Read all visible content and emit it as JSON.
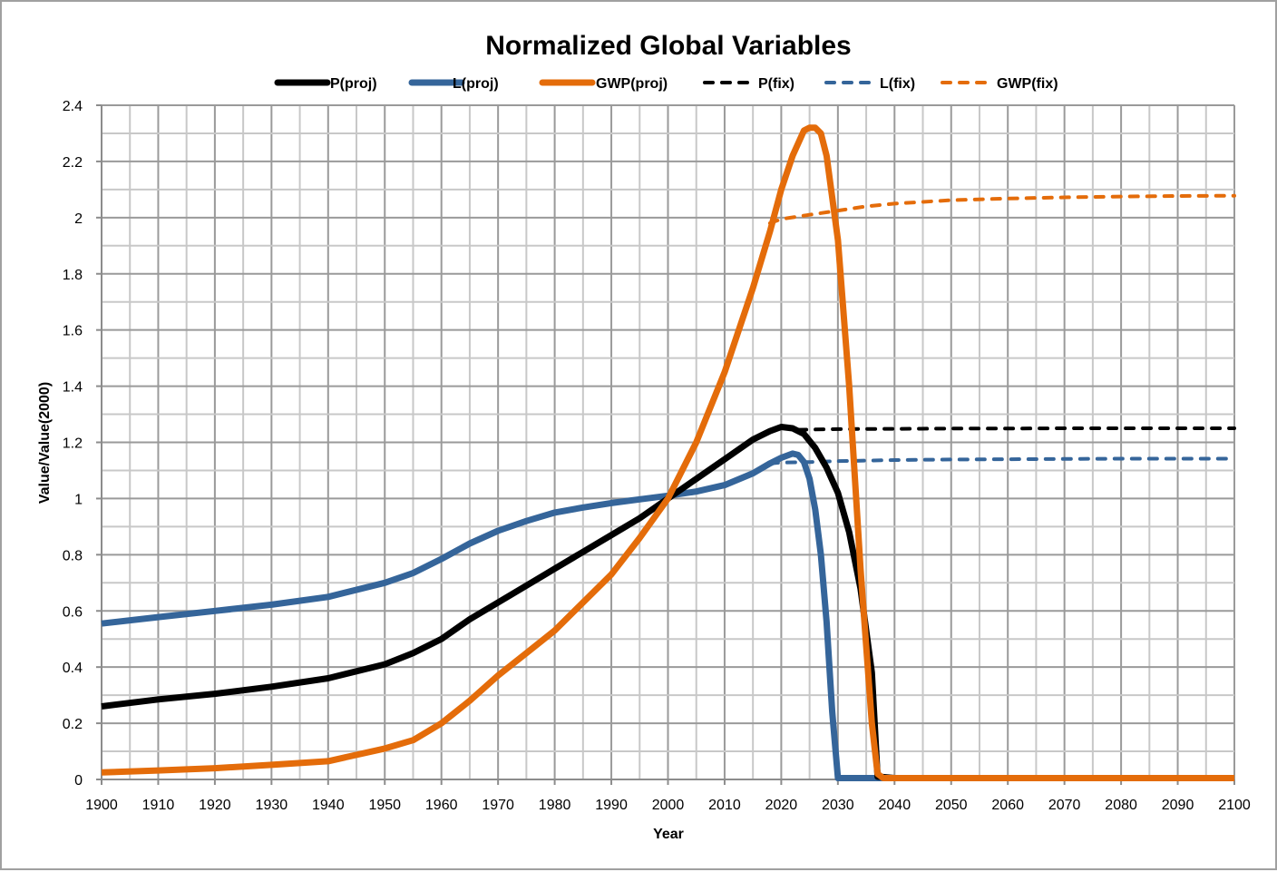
{
  "chart_data": {
    "type": "line",
    "title": "Normalized Global Variables",
    "xlabel": "Year",
    "ylabel": "Value/Value(2000)",
    "xlim": [
      1900,
      2100
    ],
    "ylim": [
      0,
      2.4
    ],
    "x_major_step": 10,
    "x_minor_step": 5,
    "y_major_step": 0.2,
    "y_minor_step": 0.1,
    "grid": true,
    "legend_position": "top",
    "x_ticks": [
      "1900",
      "1910",
      "1920",
      "1930",
      "1940",
      "1950",
      "1960",
      "1970",
      "1980",
      "1990",
      "2000",
      "2010",
      "2020",
      "2030",
      "2040",
      "2050",
      "2060",
      "2070",
      "2080",
      "2090",
      "2100"
    ],
    "y_ticks": [
      "0",
      "0.2",
      "0.4",
      "0.6",
      "0.8",
      "1",
      "1.2",
      "1.4",
      "1.6",
      "1.8",
      "2",
      "2.2",
      "2.4"
    ],
    "series": [
      {
        "name": "P(proj)",
        "color": "#000000",
        "style": "solid",
        "x": [
          1900,
          1910,
          1920,
          1930,
          1940,
          1950,
          1955,
          1960,
          1965,
          1970,
          1975,
          1980,
          1985,
          1990,
          1995,
          2000,
          2005,
          2010,
          2015,
          2018,
          2020,
          2022,
          2024,
          2026,
          2028,
          2030,
          2032,
          2034,
          2036,
          2037,
          2040,
          2100
        ],
        "y": [
          0.26,
          0.285,
          0.305,
          0.33,
          0.36,
          0.41,
          0.45,
          0.5,
          0.57,
          0.63,
          0.69,
          0.75,
          0.81,
          0.87,
          0.93,
          1.0,
          1.07,
          1.14,
          1.21,
          1.24,
          1.255,
          1.25,
          1.23,
          1.18,
          1.11,
          1.02,
          0.88,
          0.68,
          0.38,
          0.01,
          0.005,
          0.005
        ]
      },
      {
        "name": "L(proj)",
        "color": "#35659a",
        "style": "solid",
        "x": [
          1900,
          1910,
          1920,
          1930,
          1940,
          1950,
          1955,
          1960,
          1965,
          1970,
          1975,
          1980,
          1985,
          1990,
          1995,
          2000,
          2005,
          2010,
          2015,
          2018,
          2020,
          2022,
          2023,
          2024,
          2025,
          2026,
          2027,
          2028,
          2029,
          2030,
          2031,
          2040,
          2100
        ],
        "y": [
          0.555,
          0.578,
          0.6,
          0.622,
          0.65,
          0.7,
          0.735,
          0.785,
          0.84,
          0.885,
          0.92,
          0.95,
          0.968,
          0.984,
          0.997,
          1.01,
          1.025,
          1.048,
          1.09,
          1.125,
          1.145,
          1.16,
          1.155,
          1.13,
          1.07,
          0.96,
          0.8,
          0.56,
          0.24,
          0.005,
          0.005,
          0.005,
          0.005
        ]
      },
      {
        "name": "GWP(proj)",
        "color": "#e46c0a",
        "style": "solid",
        "x": [
          1900,
          1910,
          1920,
          1930,
          1940,
          1950,
          1955,
          1960,
          1965,
          1970,
          1975,
          1980,
          1985,
          1990,
          1995,
          2000,
          2005,
          2010,
          2015,
          2018,
          2020,
          2022,
          2024,
          2025,
          2026,
          2027,
          2028,
          2030,
          2032,
          2034,
          2036,
          2037,
          2038,
          2040,
          2100
        ],
        "y": [
          0.025,
          0.032,
          0.04,
          0.052,
          0.065,
          0.11,
          0.14,
          0.2,
          0.28,
          0.37,
          0.45,
          0.53,
          0.63,
          0.73,
          0.86,
          1.0,
          1.2,
          1.45,
          1.75,
          1.95,
          2.1,
          2.22,
          2.31,
          2.32,
          2.32,
          2.3,
          2.22,
          1.92,
          1.4,
          0.75,
          0.2,
          0.02,
          0.005,
          0.005,
          0.005
        ]
      },
      {
        "name": "P(fix)",
        "color": "#000000",
        "style": "dashed",
        "x": [
          2023,
          2030,
          2040,
          2050,
          2060,
          2070,
          2080,
          2090,
          2100
        ],
        "y": [
          1.245,
          1.247,
          1.248,
          1.249,
          1.249,
          1.25,
          1.25,
          1.25,
          1.25
        ]
      },
      {
        "name": "L(fix)",
        "color": "#35659a",
        "style": "dashed",
        "x": [
          2018,
          2020,
          2025,
          2030,
          2040,
          2050,
          2060,
          2070,
          2080,
          2090,
          2100
        ],
        "y": [
          1.125,
          1.128,
          1.13,
          1.133,
          1.137,
          1.139,
          1.14,
          1.141,
          1.142,
          1.142,
          1.142
        ]
      },
      {
        "name": "GWP(fix)",
        "color": "#e46c0a",
        "style": "dashed",
        "x": [
          2018,
          2020,
          2025,
          2030,
          2035,
          2040,
          2050,
          2060,
          2070,
          2080,
          2090,
          2100
        ],
        "y": [
          1.98,
          1.995,
          2.01,
          2.025,
          2.04,
          2.05,
          2.062,
          2.068,
          2.072,
          2.075,
          2.077,
          2.078
        ]
      }
    ]
  }
}
